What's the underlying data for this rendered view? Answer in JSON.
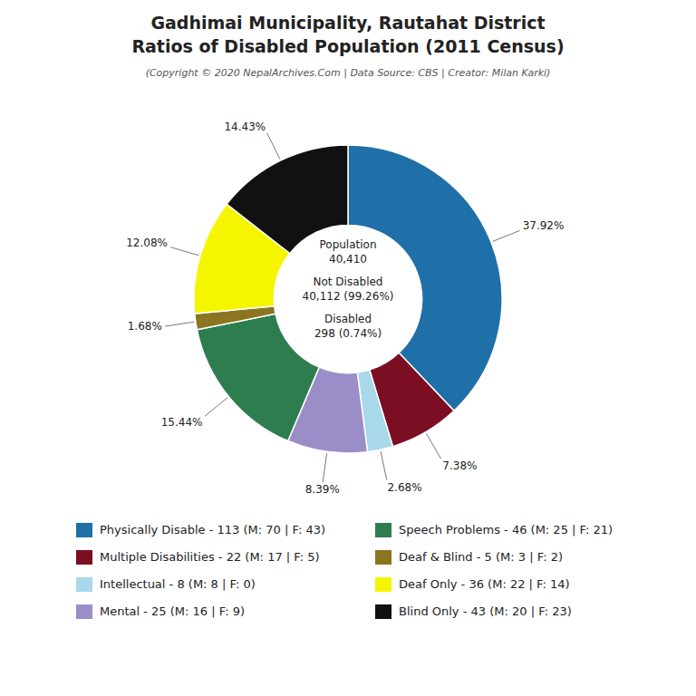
{
  "chart_data": {
    "type": "pie",
    "title": [
      "Gadhimai Municipality, Rautahat District",
      "Ratios of Disabled Population (2011 Census)"
    ],
    "subtitle": "(Copyright © 2020 NepalArchives.Com | Data Source: CBS | Creator: Milan Karki)",
    "categories": [
      "Physically Disable - 113 (M: 70 | F: 43)",
      "Multiple Disabilities - 22 (M: 17 | F: 5)",
      "Intellectual - 8 (M: 8 | F: 0)",
      "Mental - 25 (M: 16 | F: 9)",
      "Speech Problems - 46 (M: 25 | F: 21)",
      "Deaf & Blind - 5 (M: 3 | F: 2)",
      "Deaf Only - 36 (M: 22 | F: 14)",
      "Blind Only - 43 (M: 20 | F: 23)"
    ],
    "values": [
      37.92,
      7.38,
      2.68,
      8.39,
      15.44,
      1.68,
      12.08,
      14.43
    ],
    "value_labels": [
      "37.92%",
      "7.38%",
      "2.68%",
      "8.39%",
      "15.44%",
      "1.68%",
      "12.08%",
      "14.43%"
    ],
    "data_labels": true,
    "colors": [
      "#1f6fa8",
      "#7b0e22",
      "#a8d8ea",
      "#9b8dc8",
      "#2e7d4f",
      "#8b7520",
      "#f5f500",
      "#111111"
    ],
    "legend": "bottom",
    "annotations": [
      [
        "Population",
        "40,410"
      ],
      [
        "Not Disabled",
        "40,112 (99.26%)"
      ],
      [
        "Disabled",
        "298 (0.74%)"
      ]
    ]
  }
}
